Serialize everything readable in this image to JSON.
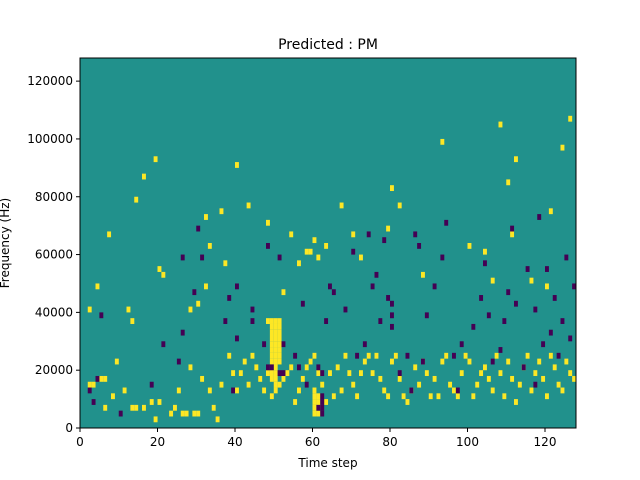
{
  "chart_data": {
    "type": "heatmap",
    "title": "Predicted : PM",
    "xlabel": "Time step",
    "ylabel": "Frequency (Hz)",
    "xlim": [
      0,
      128
    ],
    "ylim": [
      0,
      128000
    ],
    "x_ticks": [
      0,
      20,
      40,
      60,
      80,
      100,
      120
    ],
    "y_ticks": [
      0,
      20000,
      40000,
      60000,
      80000,
      100000,
      120000
    ],
    "x_tick_labels": [
      "0",
      "20",
      "40",
      "60",
      "80",
      "100",
      "120"
    ],
    "y_tick_labels": [
      "0",
      "20000",
      "40000",
      "60000",
      "80000",
      "100000",
      "120000"
    ],
    "grid": false,
    "n_time_steps": 128,
    "n_freq_bins": 64,
    "freq_bin_hz": 2000,
    "value_levels": [
      -1,
      0,
      1
    ],
    "colors": {
      "background": "#21918c",
      "low": "#440154",
      "high": "#fde725"
    },
    "cells_high": [
      [
        7,
        2
      ],
      [
        7,
        3
      ],
      [
        8,
        5
      ],
      [
        3,
        6
      ],
      [
        8,
        6
      ],
      [
        5,
        8
      ],
      [
        11,
        9
      ],
      [
        6,
        11
      ],
      [
        3,
        13
      ],
      [
        3,
        14
      ],
      [
        3,
        16
      ],
      [
        4,
        18
      ],
      [
        1,
        19
      ],
      [
        4,
        20
      ],
      [
        2,
        23
      ],
      [
        3,
        24
      ],
      [
        6,
        25
      ],
      [
        2,
        26
      ],
      [
        2,
        27
      ],
      [
        10,
        28
      ],
      [
        2,
        29
      ],
      [
        2,
        30
      ],
      [
        8,
        31
      ],
      [
        6,
        33
      ],
      [
        3,
        34
      ],
      [
        1,
        35
      ],
      [
        7,
        36
      ],
      [
        12,
        38
      ],
      [
        9,
        39
      ],
      [
        6,
        40
      ],
      [
        9,
        41
      ],
      [
        11,
        42
      ],
      [
        7,
        43
      ],
      [
        12,
        44
      ],
      [
        10,
        45
      ],
      [
        8,
        46
      ],
      [
        6,
        47
      ],
      [
        9,
        48
      ],
      [
        5,
        49
      ],
      [
        6,
        50
      ],
      [
        7,
        51
      ],
      [
        8,
        52
      ],
      [
        9,
        53
      ],
      [
        10,
        54
      ],
      [
        4,
        55
      ],
      [
        6,
        56
      ],
      [
        8,
        57
      ],
      [
        10,
        58
      ],
      [
        11,
        59
      ],
      [
        12,
        60
      ],
      [
        9,
        61
      ],
      [
        7,
        62
      ],
      [
        4,
        63
      ],
      [
        9,
        64
      ],
      [
        5,
        65
      ],
      [
        10,
        66
      ],
      [
        6,
        67
      ],
      [
        12,
        68
      ],
      [
        9,
        69
      ],
      [
        7,
        70
      ],
      [
        5,
        71
      ],
      [
        9,
        72
      ],
      [
        11,
        73
      ],
      [
        12,
        74
      ],
      [
        9,
        75
      ],
      [
        12,
        76
      ],
      [
        8,
        77
      ],
      [
        6,
        78
      ],
      [
        5,
        79
      ],
      [
        11,
        80
      ],
      [
        12,
        81
      ],
      [
        8,
        82
      ],
      [
        5,
        83
      ],
      [
        4,
        84
      ],
      [
        6,
        85
      ],
      [
        10,
        86
      ],
      [
        7,
        87
      ],
      [
        11,
        88
      ],
      [
        9,
        89
      ],
      [
        5,
        90
      ],
      [
        8,
        91
      ],
      [
        5,
        92
      ],
      [
        11,
        93
      ],
      [
        12,
        94
      ],
      [
        7,
        95
      ],
      [
        6,
        96
      ],
      [
        5,
        97
      ],
      [
        9,
        98
      ],
      [
        12,
        99
      ],
      [
        11,
        100
      ],
      [
        5,
        101
      ],
      [
        7,
        102
      ],
      [
        9,
        103
      ],
      [
        10,
        104
      ],
      [
        8,
        105
      ],
      [
        6,
        106
      ],
      [
        12,
        107
      ],
      [
        9,
        108
      ],
      [
        5,
        109
      ],
      [
        11,
        110
      ],
      [
        8,
        111
      ],
      [
        4,
        112
      ],
      [
        7,
        113
      ],
      [
        10,
        114
      ],
      [
        12,
        115
      ],
      [
        6,
        116
      ],
      [
        9,
        117
      ],
      [
        11,
        118
      ],
      [
        8,
        119
      ],
      [
        5,
        120
      ],
      [
        12,
        121
      ],
      [
        10,
        122
      ],
      [
        7,
        123
      ],
      [
        6,
        124
      ],
      [
        11,
        125
      ],
      [
        9,
        126
      ],
      [
        8,
        127
      ],
      [
        18,
        48
      ],
      [
        18,
        49
      ],
      [
        17,
        49
      ],
      [
        16,
        49
      ],
      [
        15,
        49
      ],
      [
        14,
        49
      ],
      [
        13,
        49
      ],
      [
        12,
        49
      ],
      [
        11,
        49
      ],
      [
        10,
        49
      ],
      [
        9,
        49
      ],
      [
        8,
        49
      ],
      [
        18,
        50
      ],
      [
        17,
        50
      ],
      [
        16,
        50
      ],
      [
        15,
        50
      ],
      [
        14,
        50
      ],
      [
        13,
        50
      ],
      [
        12,
        50
      ],
      [
        11,
        50
      ],
      [
        10,
        50
      ],
      [
        9,
        50
      ],
      [
        8,
        50
      ],
      [
        7,
        50
      ],
      [
        18,
        51
      ],
      [
        17,
        51
      ],
      [
        16,
        51
      ],
      [
        15,
        51
      ],
      [
        14,
        51
      ],
      [
        13,
        51
      ],
      [
        12,
        51
      ],
      [
        11,
        51
      ],
      [
        4,
        60
      ],
      [
        4,
        61
      ],
      [
        3,
        61
      ],
      [
        2,
        61
      ],
      [
        5,
        61
      ],
      [
        3,
        60
      ],
      [
        5,
        60
      ],
      [
        6,
        60
      ],
      [
        2,
        60
      ],
      [
        20,
        2
      ],
      [
        24,
        4
      ],
      [
        33,
        7
      ],
      [
        20,
        12
      ],
      [
        18,
        13
      ],
      [
        39,
        14
      ],
      [
        43,
        16
      ],
      [
        46,
        19
      ],
      [
        27,
        20
      ],
      [
        26,
        21
      ],
      [
        20,
        28
      ],
      [
        21,
        30
      ],
      [
        36,
        32
      ],
      [
        24,
        32
      ],
      [
        31,
        33
      ],
      [
        37,
        36
      ],
      [
        28,
        37
      ],
      [
        45,
        40
      ],
      [
        38,
        43
      ],
      [
        35,
        48
      ],
      [
        23,
        52
      ],
      [
        33,
        54
      ],
      [
        28,
        56
      ],
      [
        30,
        58
      ],
      [
        30,
        59
      ],
      [
        32,
        60
      ],
      [
        29,
        61
      ],
      [
        31,
        63
      ],
      [
        38,
        67
      ],
      [
        33,
        70
      ],
      [
        29,
        72
      ],
      [
        34,
        79
      ],
      [
        41,
        80
      ],
      [
        38,
        82
      ],
      [
        26,
        88
      ],
      [
        49,
        93
      ],
      [
        31,
        100
      ],
      [
        30,
        104
      ],
      [
        25,
        106
      ],
      [
        52,
        108
      ],
      [
        42,
        110
      ],
      [
        33,
        111
      ],
      [
        46,
        112
      ],
      [
        25,
        116
      ],
      [
        24,
        120
      ],
      [
        37,
        121
      ],
      [
        48,
        124
      ],
      [
        53,
        126
      ]
    ],
    "cells_low": [
      [
        6,
        2
      ],
      [
        4,
        3
      ],
      [
        8,
        4
      ],
      [
        19,
        5
      ],
      [
        2,
        10
      ],
      [
        7,
        18
      ],
      [
        14,
        21
      ],
      [
        11,
        25
      ],
      [
        16,
        26
      ],
      [
        29,
        26
      ],
      [
        23,
        29
      ],
      [
        34,
        30
      ],
      [
        29,
        31
      ],
      [
        18,
        37
      ],
      [
        22,
        38
      ],
      [
        6,
        39
      ],
      [
        24,
        40
      ],
      [
        15,
        40
      ],
      [
        20,
        44
      ],
      [
        18,
        44
      ],
      [
        14,
        47
      ],
      [
        31,
        48
      ],
      [
        29,
        51
      ],
      [
        14,
        52
      ],
      [
        12,
        55
      ],
      [
        10,
        56
      ],
      [
        21,
        57
      ],
      [
        7,
        58
      ],
      [
        9,
        62
      ],
      [
        18,
        63
      ],
      [
        24,
        64
      ],
      [
        23,
        65
      ],
      [
        20,
        68
      ],
      [
        30,
        70
      ],
      [
        12,
        71
      ],
      [
        14,
        73
      ],
      [
        33,
        74
      ],
      [
        24,
        75
      ],
      [
        26,
        76
      ],
      [
        18,
        77
      ],
      [
        32,
        78
      ],
      [
        22,
        79
      ],
      [
        17,
        80
      ],
      [
        19,
        80
      ],
      [
        21,
        80
      ],
      [
        9,
        82
      ],
      [
        12,
        84
      ],
      [
        6,
        85
      ],
      [
        33,
        86
      ],
      [
        31,
        87
      ],
      [
        11,
        88
      ],
      [
        19,
        89
      ],
      [
        24,
        91
      ],
      [
        29,
        93
      ],
      [
        35,
        94
      ],
      [
        12,
        96
      ],
      [
        6,
        97
      ],
      [
        14,
        98
      ],
      [
        17,
        101
      ],
      [
        22,
        103
      ],
      [
        28,
        104
      ],
      [
        19,
        105
      ],
      [
        11,
        106
      ],
      [
        13,
        108
      ],
      [
        18,
        109
      ],
      [
        23,
        110
      ],
      [
        34,
        111
      ],
      [
        21,
        112
      ],
      [
        10,
        114
      ],
      [
        27,
        115
      ],
      [
        7,
        117
      ],
      [
        20,
        117
      ],
      [
        36,
        118
      ],
      [
        14,
        119
      ],
      [
        27,
        120
      ],
      [
        16,
        121
      ],
      [
        22,
        122
      ],
      [
        12,
        123
      ],
      [
        18,
        124
      ],
      [
        29,
        125
      ],
      [
        15,
        126
      ],
      [
        24,
        127
      ],
      [
        10,
        48
      ],
      [
        10,
        49
      ],
      [
        9,
        51
      ],
      [
        9,
        52
      ],
      [
        3,
        61
      ],
      [
        4,
        62
      ],
      [
        2,
        62
      ],
      [
        5,
        62
      ],
      [
        3,
        62
      ],
      [
        10,
        61
      ]
    ]
  }
}
